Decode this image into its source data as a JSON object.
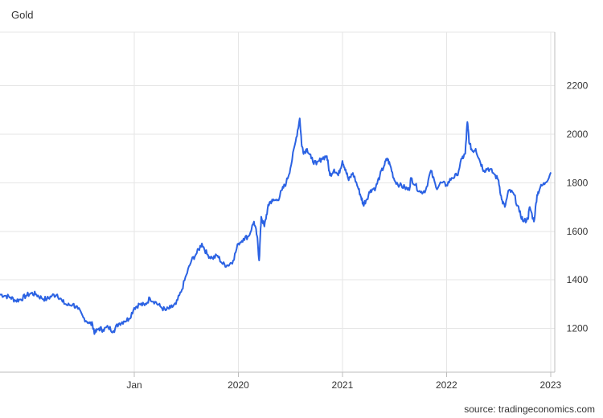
{
  "title": "Gold",
  "source": "source: tradingeconomics.com",
  "colors": {
    "line": "#2b62e3",
    "grid": "#e6e6e6",
    "axis": "#bdbdbd",
    "text": "#333333"
  },
  "chart_data": {
    "type": "line",
    "title": "Gold",
    "xlabel": "",
    "ylabel": "",
    "xlim": [
      2017.71,
      2023.04
    ],
    "ylim": [
      1020,
      2420
    ],
    "y_axis_position": "right",
    "grid": true,
    "x_ticks": [
      {
        "label": "Jan",
        "value": 2019.0
      },
      {
        "label": "2020",
        "value": 2020.0
      },
      {
        "label": "2021",
        "value": 2021.0
      },
      {
        "label": "2022",
        "value": 2022.0
      },
      {
        "label": "2023",
        "value": 2023.0
      }
    ],
    "y_ticks": [
      1200,
      1400,
      1600,
      1800,
      2000,
      2200
    ],
    "series": [
      {
        "x": [
          2017.71,
          2017.76,
          2017.81,
          2017.86,
          2017.91,
          2017.96,
          2018.01,
          2018.06,
          2018.11,
          2018.16,
          2018.21,
          2018.26,
          2018.31,
          2018.36,
          2018.41,
          2018.46,
          2018.51,
          2018.56,
          2018.6,
          2018.62,
          2018.66,
          2018.7,
          2018.75,
          2018.8,
          2018.85,
          2018.9,
          2018.95,
          2019.0,
          2019.05,
          2019.1,
          2019.15,
          2019.2,
          2019.25,
          2019.3,
          2019.35,
          2019.4,
          2019.45,
          2019.5,
          2019.55,
          2019.6,
          2019.65,
          2019.7,
          2019.75,
          2019.8,
          2019.85,
          2019.9,
          2019.95,
          2020.0,
          2020.05,
          2020.1,
          2020.15,
          2020.18,
          2020.2,
          2020.22,
          2020.25,
          2020.28,
          2020.3,
          2020.33,
          2020.38,
          2020.42,
          2020.46,
          2020.5,
          2020.55,
          2020.59,
          2020.61,
          2020.63,
          2020.66,
          2020.7,
          2020.75,
          2020.8,
          2020.85,
          2020.88,
          2020.92,
          2020.96,
          2021.0,
          2021.03,
          2021.06,
          2021.1,
          2021.15,
          2021.18,
          2021.2,
          2021.23,
          2021.27,
          2021.32,
          2021.36,
          2021.4,
          2021.43,
          2021.46,
          2021.5,
          2021.55,
          2021.6,
          2021.64,
          2021.66,
          2021.7,
          2021.75,
          2021.8,
          2021.85,
          2021.9,
          2021.95,
          2022.0,
          2022.05,
          2022.1,
          2022.15,
          2022.18,
          2022.2,
          2022.22,
          2022.25,
          2022.28,
          2022.32,
          2022.36,
          2022.4,
          2022.45,
          2022.5,
          2022.53,
          2022.56,
          2022.6,
          2022.65,
          2022.7,
          2022.74,
          2022.78,
          2022.8,
          2022.84,
          2022.87,
          2022.9,
          2022.95,
          2023.0
        ],
        "values": [
          1340,
          1335,
          1328,
          1315,
          1320,
          1335,
          1345,
          1340,
          1325,
          1320,
          1335,
          1340,
          1310,
          1295,
          1300,
          1280,
          1245,
          1225,
          1215,
          1180,
          1200,
          1195,
          1205,
          1190,
          1220,
          1230,
          1240,
          1285,
          1300,
          1295,
          1325,
          1310,
          1290,
          1275,
          1285,
          1300,
          1350,
          1420,
          1480,
          1510,
          1550,
          1505,
          1490,
          1500,
          1465,
          1460,
          1480,
          1550,
          1570,
          1580,
          1640,
          1580,
          1480,
          1660,
          1620,
          1690,
          1720,
          1725,
          1730,
          1770,
          1800,
          1860,
          1970,
          2065,
          1950,
          1925,
          1940,
          1900,
          1875,
          1900,
          1910,
          1830,
          1855,
          1830,
          1890,
          1855,
          1810,
          1840,
          1780,
          1740,
          1710,
          1730,
          1770,
          1780,
          1830,
          1870,
          1900,
          1870,
          1810,
          1790,
          1780,
          1770,
          1820,
          1790,
          1760,
          1770,
          1850,
          1780,
          1800,
          1790,
          1820,
          1830,
          1900,
          1920,
          2050,
          1960,
          1930,
          1940,
          1890,
          1850,
          1860,
          1840,
          1810,
          1730,
          1700,
          1770,
          1750,
          1680,
          1640,
          1650,
          1700,
          1640,
          1750,
          1780,
          1800,
          1840
        ]
      }
    ]
  }
}
